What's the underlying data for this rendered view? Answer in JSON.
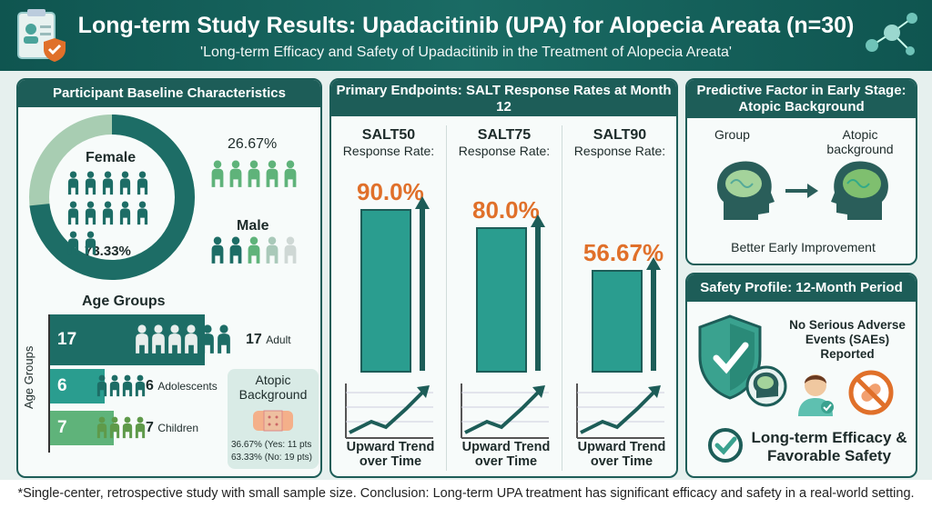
{
  "header": {
    "title": "Long-term Study Results: Upadacitinib (UPA) for Alopecia Areata (n=30)",
    "subtitle": "'Long-term Efficacy and Safety of Upadacitinib in the Treatment of Alopecia Areata'"
  },
  "baseline": {
    "title": "Participant Baseline Characteristics",
    "female_label": "Female",
    "female_pct": "73.33%",
    "male_label": "Male",
    "male_pct": "26.67%",
    "female_fraction": 0.7333,
    "age_title": "Age Groups",
    "age_axis_label": "Age Groups",
    "age_groups": [
      {
        "count": "17",
        "label": "Adult",
        "value": 17
      },
      {
        "count": "6",
        "label": "Adolescents",
        "value": 6
      },
      {
        "count": "7",
        "label": "Children",
        "value": 7
      }
    ],
    "atopic_title": "Atopic Background",
    "atopic_yes": "36.67% (Yes: 11 pts",
    "atopic_no": "63.33% (No: 19 pts)"
  },
  "endpoints": {
    "title": "Primary Endpoints: SALT Response Rates at Month 12",
    "items": [
      {
        "name": "SALT50",
        "sub": "Response Rate:",
        "pct": "90.0%",
        "value": 90.0,
        "trend": "Upward Trend over Time"
      },
      {
        "name": "SALT75",
        "sub": "Response Rate:",
        "pct": "80.0%",
        "value": 80.0,
        "trend": "Upward Trend over Time"
      },
      {
        "name": "SALT90",
        "sub": "Response Rate:",
        "pct": "56.67%",
        "value": 56.67,
        "trend": "Upward Trend over Time"
      }
    ]
  },
  "predictive": {
    "title": "Predictive Factor in Early Stage: Atopic Background",
    "group_label": "Group",
    "atopic_label": "Atopic background",
    "caption": "Better Early Improvement"
  },
  "safety": {
    "title": "Safety Profile: 12-Month Period",
    "sae_text": "No Serious Adverse Events (SAEs) Reported",
    "conclusion": "Long-term Efficacy & Favorable Safety"
  },
  "footer": {
    "text": "*Single-center, retrospective study with small sample size. Conclusion: Long-term UPA treatment has significant efficacy and safety in a real-world setting."
  },
  "colors": {
    "dark_teal": "#1d5d58",
    "mid_teal": "#2a9d8f",
    "light_green": "#5fb37a",
    "orange": "#e0702a"
  }
}
